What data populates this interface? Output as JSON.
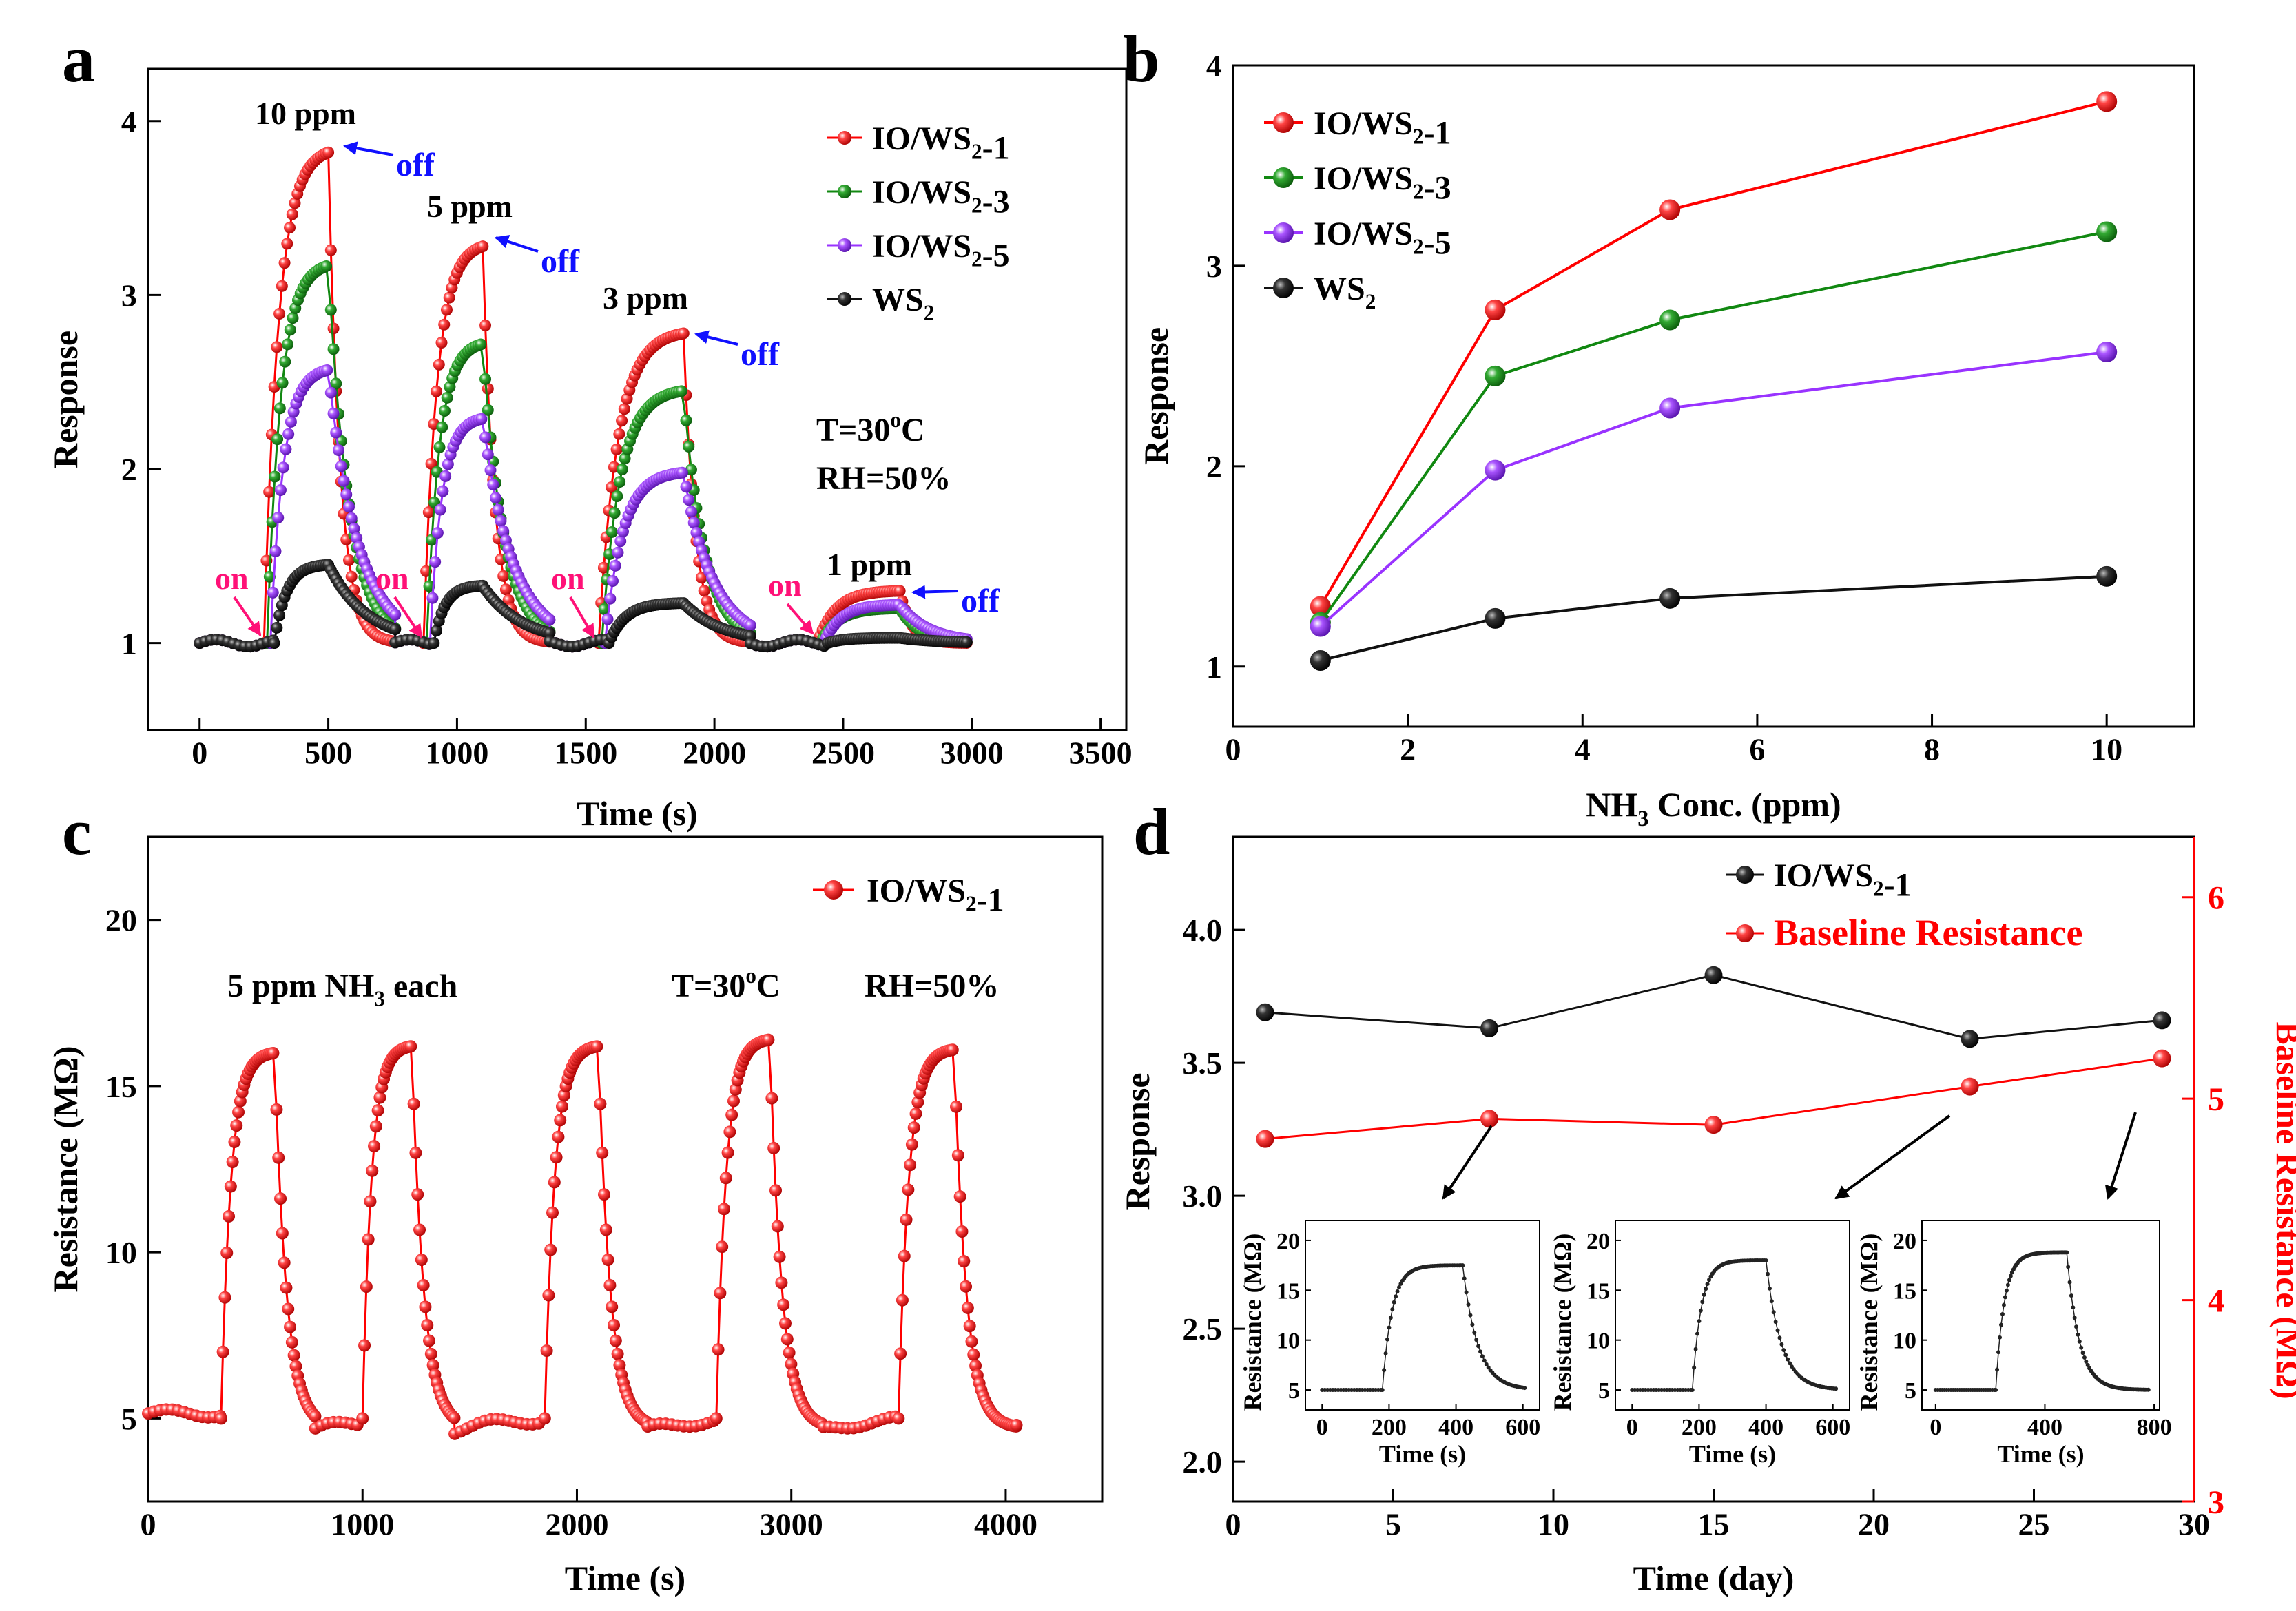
{
  "figure": {
    "panels": [
      {
        "id": "a",
        "label": "a",
        "type": "line",
        "xlabel": "Time (s)",
        "ylabel": "Response",
        "xlim": [
          -200,
          3600
        ],
        "ylim": [
          0.5,
          4.3
        ],
        "xticks": [
          0,
          500,
          1000,
          1500,
          2000,
          2500,
          3000,
          3500
        ],
        "yticks": [
          1,
          2,
          3,
          4
        ],
        "legend": [
          {
            "name": "IO/WS",
            "sub": "2",
            "suffix": "-1",
            "color": "#ff0000"
          },
          {
            "name": "IO/WS",
            "sub": "2",
            "suffix": "-3",
            "color": "#118811"
          },
          {
            "name": "IO/WS",
            "sub": "2",
            "suffix": "-5",
            "color": "#9933ff"
          },
          {
            "name": "WS",
            "sub": "2",
            "suffix": "",
            "color": "#111111"
          }
        ],
        "conditions": {
          "temperature": "T=30",
          "temp_sup": "o",
          "temp_unit": "C",
          "humidity": "RH=50%"
        },
        "concentration_labels": [
          "10 ppm",
          "5 ppm",
          "3 ppm",
          "1 ppm"
        ],
        "on_label": "on",
        "off_label": "off",
        "on_times": [
          200,
          800,
          1500,
          2340
        ],
        "pulses": [
          {
            "start": 250,
            "end": 500,
            "conc": "10 ppm"
          },
          {
            "start": 870,
            "end": 1100,
            "conc": "5 ppm"
          },
          {
            "start": 1550,
            "end": 1880,
            "conc": "3 ppm"
          },
          {
            "start": 2400,
            "end": 2720,
            "conc": "1 ppm"
          }
        ]
      },
      {
        "id": "b",
        "label": "b",
        "type": "line",
        "xlabel_main": "NH",
        "xlabel_sub": "3",
        "xlabel_rest": " Conc. (ppm)",
        "ylabel": "Response",
        "xlim": [
          0,
          11
        ],
        "ylim": [
          0.7,
          4.0
        ],
        "xticks": [
          0,
          2,
          4,
          6,
          8,
          10
        ],
        "yticks": [
          1,
          2,
          3,
          4
        ],
        "legend": [
          {
            "name": "IO/WS",
            "sub": "2",
            "suffix": "-1",
            "color": "#ff0000"
          },
          {
            "name": "IO/WS",
            "sub": "2",
            "suffix": "-3",
            "color": "#118811"
          },
          {
            "name": "IO/WS",
            "sub": "2",
            "suffix": "-5",
            "color": "#9933ff"
          },
          {
            "name": "WS",
            "sub": "2",
            "suffix": "",
            "color": "#111111"
          }
        ]
      },
      {
        "id": "c",
        "label": "c",
        "type": "line",
        "xlabel": "Time (s)",
        "ylabel": "Resistance (MΩ)",
        "xlim": [
          0,
          4450
        ],
        "ylim": [
          2.5,
          22.5
        ],
        "xticks": [
          0,
          1000,
          2000,
          3000,
          4000
        ],
        "yticks": [
          5,
          10,
          15,
          20
        ],
        "legend": [
          {
            "name": "IO/WS",
            "sub": "2",
            "suffix": "-1",
            "color": "#ff0000"
          }
        ],
        "annotations": {
          "each_main": "5 ppm NH",
          "each_sub": "3",
          "each_rest": " each",
          "temp": "T=30",
          "temp_sup": "o",
          "temp_unit": "C",
          "rh": "RH=50%"
        }
      },
      {
        "id": "d",
        "label": "d",
        "type": "line",
        "xlabel": "Time (day)",
        "ylabel": "Response",
        "ylabel_right": "Baseline Resistance (MΩ)",
        "xlim": [
          0,
          30
        ],
        "ylim": [
          1.85,
          4.35
        ],
        "ylim_right": [
          3,
          6.3
        ],
        "xticks": [
          0,
          5,
          10,
          15,
          20,
          25,
          30
        ],
        "yticks": [
          "2.0",
          "2.5",
          "3.0",
          "3.5",
          "4.0"
        ],
        "yticks_right": [
          3,
          4,
          5,
          6
        ],
        "legend": [
          {
            "name": "IO/WS",
            "sub": "2",
            "suffix": "-1",
            "color": "#111111"
          },
          {
            "name": "Baseline Resistance",
            "sub": "",
            "suffix": "",
            "color": "#ff0000"
          }
        ],
        "insets": [
          {
            "xlabel": "Time (s)",
            "ylabel": "Resistance (MΩ)",
            "xticks": [
              0,
              200,
              400,
              600
            ],
            "yticks": [
              5,
              10,
              15,
              20
            ],
            "xlim": [
              -50,
              650
            ],
            "ylim": [
              3,
              22
            ],
            "rise": 180,
            "fall": 420,
            "peak": 17.5
          },
          {
            "xlabel": "Time (s)",
            "ylabel": "Resistance (MΩ)",
            "xticks": [
              0,
              200,
              400,
              600
            ],
            "yticks": [
              5,
              10,
              15,
              20
            ],
            "xlim": [
              -50,
              650
            ],
            "ylim": [
              3,
              22
            ],
            "rise": 180,
            "fall": 400,
            "peak": 18.0
          },
          {
            "xlabel": "Time (s)",
            "ylabel": "Resistance (MΩ)",
            "xticks": [
              0,
              400,
              800
            ],
            "yticks": [
              5,
              10,
              15,
              20
            ],
            "xlim": [
              -50,
              820
            ],
            "ylim": [
              3,
              22
            ],
            "rise": 220,
            "fall": 480,
            "peak": 18.8
          }
        ]
      }
    ]
  },
  "chart_data": [
    {
      "panel": "a",
      "type": "line",
      "title": "",
      "xlabel": "Time (s)",
      "ylabel": "Response",
      "series": [
        {
          "name": "IO/WS2-1",
          "color": "#ff0000",
          "baseline": 1.0,
          "peaks": [
            3.82,
            3.28,
            2.78,
            1.3
          ]
        },
        {
          "name": "IO/WS2-3",
          "color": "#118811",
          "baseline": 1.0,
          "peaks": [
            3.17,
            2.72,
            2.45,
            1.2
          ]
        },
        {
          "name": "IO/WS2-5",
          "color": "#9933ff",
          "baseline": 1.0,
          "peaks": [
            2.57,
            2.29,
            1.98,
            1.22
          ]
        },
        {
          "name": "WS2",
          "color": "#111111",
          "baseline": 1.0,
          "peaks": [
            1.45,
            1.33,
            1.23,
            1.03
          ]
        }
      ]
    },
    {
      "panel": "b",
      "type": "line",
      "xlabel": "NH3 Conc. (ppm)",
      "ylabel": "Response",
      "x": [
        1,
        3,
        5,
        10
      ],
      "series": [
        {
          "name": "IO/WS2-1",
          "color": "#ff0000",
          "values": [
            1.3,
            2.78,
            3.28,
            3.82
          ]
        },
        {
          "name": "IO/WS2-3",
          "color": "#118811",
          "values": [
            1.22,
            2.45,
            2.73,
            3.17
          ]
        },
        {
          "name": "IO/WS2-5",
          "color": "#9933ff",
          "values": [
            1.2,
            1.98,
            2.29,
            2.57
          ]
        },
        {
          "name": "WS2",
          "color": "#111111",
          "values": [
            1.03,
            1.24,
            1.34,
            1.45
          ]
        }
      ]
    },
    {
      "panel": "c",
      "type": "line",
      "xlabel": "Time (s)",
      "ylabel": "Resistance (MΩ)",
      "series": [
        {
          "name": "IO/WS2-1",
          "color": "#ff0000",
          "baseline": 5.0,
          "cycles": [
            {
              "rise": 340,
              "peak_time": 590,
              "fall_end": 780,
              "peak": 16.0
            },
            {
              "rise": 1000,
              "peak_time": 1230,
              "fall_end": 1430,
              "peak": 16.2
            },
            {
              "rise": 1850,
              "peak_time": 2100,
              "fall_end": 2330,
              "peak": 16.2
            },
            {
              "rise": 2650,
              "peak_time": 2900,
              "fall_end": 3150,
              "peak": 16.4
            },
            {
              "rise": 3500,
              "peak_time": 3760,
              "fall_end": 4050,
              "peak": 16.1
            }
          ]
        }
      ]
    },
    {
      "panel": "d",
      "type": "line",
      "xlabel": "Time (day)",
      "ylabel": "Response",
      "ylabel_right": "Baseline Resistance (MΩ)",
      "x": [
        1,
        8,
        15,
        23,
        29
      ],
      "series": [
        {
          "name": "IO/WS2-1",
          "color": "#111111",
          "axis": "left",
          "values": [
            3.69,
            3.63,
            3.83,
            3.59,
            3.66
          ]
        },
        {
          "name": "Baseline Resistance",
          "color": "#ff0000",
          "axis": "right",
          "values": [
            4.8,
            4.9,
            4.87,
            5.06,
            5.2
          ]
        }
      ]
    }
  ]
}
